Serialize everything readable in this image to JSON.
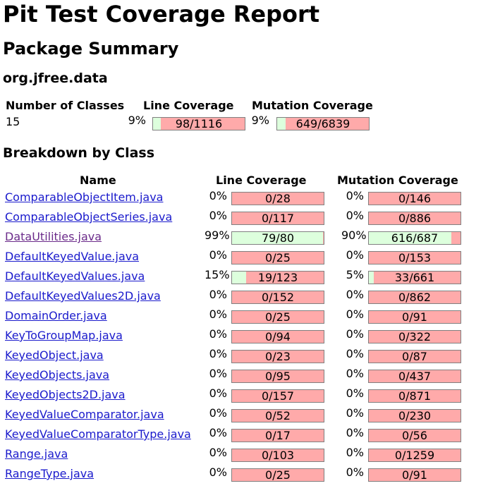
{
  "page": {
    "title": "Pit Test Coverage Report",
    "section": "Package Summary",
    "package": "org.jfree.data",
    "breakdown_title": "Breakdown by Class"
  },
  "summary": {
    "headers": {
      "classes": "Number of Classes",
      "line": "Line Coverage",
      "mutation": "Mutation Coverage"
    },
    "num_classes": "15",
    "line": {
      "pct": "9%",
      "text": "98/1116",
      "fraction": 0.088
    },
    "mutation": {
      "pct": "9%",
      "text": "649/6839",
      "fraction": 0.095
    }
  },
  "table": {
    "headers": {
      "name": "Name",
      "line": "Line Coverage",
      "mutation": "Mutation Coverage"
    },
    "rows": [
      {
        "name": "ComparableObjectItem.java",
        "visited": false,
        "line_pct": "0%",
        "line_text": "0/28",
        "line_frac": 0,
        "mut_pct": "0%",
        "mut_text": "0/146",
        "mut_frac": 0
      },
      {
        "name": "ComparableObjectSeries.java",
        "visited": false,
        "line_pct": "0%",
        "line_text": "0/117",
        "line_frac": 0,
        "mut_pct": "0%",
        "mut_text": "0/886",
        "mut_frac": 0
      },
      {
        "name": "DataUtilities.java",
        "visited": true,
        "line_pct": "99%",
        "line_text": "79/80",
        "line_frac": 0.99,
        "mut_pct": "90%",
        "mut_text": "616/687",
        "mut_frac": 0.9
      },
      {
        "name": "DefaultKeyedValue.java",
        "visited": false,
        "line_pct": "0%",
        "line_text": "0/25",
        "line_frac": 0,
        "mut_pct": "0%",
        "mut_text": "0/153",
        "mut_frac": 0
      },
      {
        "name": "DefaultKeyedValues.java",
        "visited": false,
        "line_pct": "15%",
        "line_text": "19/123",
        "line_frac": 0.15,
        "mut_pct": "5%",
        "mut_text": "33/661",
        "mut_frac": 0.05
      },
      {
        "name": "DefaultKeyedValues2D.java",
        "visited": false,
        "line_pct": "0%",
        "line_text": "0/152",
        "line_frac": 0,
        "mut_pct": "0%",
        "mut_text": "0/862",
        "mut_frac": 0
      },
      {
        "name": "DomainOrder.java",
        "visited": false,
        "line_pct": "0%",
        "line_text": "0/25",
        "line_frac": 0,
        "mut_pct": "0%",
        "mut_text": "0/91",
        "mut_frac": 0
      },
      {
        "name": "KeyToGroupMap.java",
        "visited": false,
        "line_pct": "0%",
        "line_text": "0/94",
        "line_frac": 0,
        "mut_pct": "0%",
        "mut_text": "0/322",
        "mut_frac": 0
      },
      {
        "name": "KeyedObject.java",
        "visited": false,
        "line_pct": "0%",
        "line_text": "0/23",
        "line_frac": 0,
        "mut_pct": "0%",
        "mut_text": "0/87",
        "mut_frac": 0
      },
      {
        "name": "KeyedObjects.java",
        "visited": false,
        "line_pct": "0%",
        "line_text": "0/95",
        "line_frac": 0,
        "mut_pct": "0%",
        "mut_text": "0/437",
        "mut_frac": 0
      },
      {
        "name": "KeyedObjects2D.java",
        "visited": false,
        "line_pct": "0%",
        "line_text": "0/157",
        "line_frac": 0,
        "mut_pct": "0%",
        "mut_text": "0/871",
        "mut_frac": 0
      },
      {
        "name": "KeyedValueComparator.java",
        "visited": false,
        "line_pct": "0%",
        "line_text": "0/52",
        "line_frac": 0,
        "mut_pct": "0%",
        "mut_text": "0/230",
        "mut_frac": 0
      },
      {
        "name": "KeyedValueComparatorType.java",
        "visited": false,
        "line_pct": "0%",
        "line_text": "0/17",
        "line_frac": 0,
        "mut_pct": "0%",
        "mut_text": "0/56",
        "mut_frac": 0
      },
      {
        "name": "Range.java",
        "visited": false,
        "line_pct": "0%",
        "line_text": "0/103",
        "line_frac": 0,
        "mut_pct": "0%",
        "mut_text": "0/1259",
        "mut_frac": 0
      },
      {
        "name": "RangeType.java",
        "visited": false,
        "line_pct": "0%",
        "line_text": "0/25",
        "line_frac": 0,
        "mut_pct": "0%",
        "mut_text": "0/91",
        "mut_frac": 0
      }
    ]
  },
  "colors": {
    "covered": "#ddffdd",
    "uncovered": "#ffaaaa",
    "link": "#1a1acc",
    "visited_link": "#6b2b8a"
  }
}
